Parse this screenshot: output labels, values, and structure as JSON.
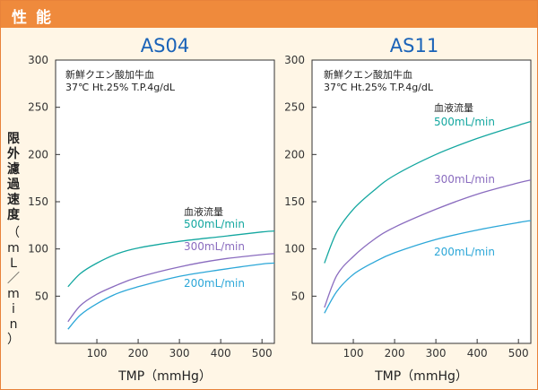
{
  "header": {
    "title": "性能"
  },
  "y_axis_label": {
    "text": "限外濾過速度",
    "unit": "（mL／min）"
  },
  "colors": {
    "header_bg": "#ef8a3c",
    "panel_bg": "#fff6e6",
    "title": "#1a63b8",
    "series_500": "#14a7a0",
    "series_300": "#8a6cbf",
    "series_200": "#2ca7d8"
  },
  "chart_data": [
    {
      "type": "line",
      "title": "AS04",
      "xlabel": "TMP（mmHg）",
      "ylabel": "限外濾過速度（mL／min）",
      "xlim": [
        0,
        530
      ],
      "ylim": [
        0,
        300
      ],
      "xticks": [
        100,
        200,
        300,
        400,
        500
      ],
      "yticks": [
        50,
        100,
        150,
        200,
        250,
        300
      ],
      "grid": false,
      "annotation_lines": [
        "新鮮クエン酸加牛血",
        "37℃ Ht.25% T.P.4g/dL"
      ],
      "legend_title": "血液流量",
      "series": [
        {
          "name": "500mL/min",
          "x": [
            30,
            60,
            100,
            150,
            200,
            300,
            400,
            500,
            530
          ],
          "y": [
            60,
            74,
            85,
            95,
            101,
            108,
            113,
            118,
            119
          ]
        },
        {
          "name": "300mL/min",
          "x": [
            30,
            60,
            100,
            150,
            200,
            300,
            400,
            500,
            530
          ],
          "y": [
            23,
            40,
            52,
            62,
            70,
            81,
            89,
            94,
            95
          ]
        },
        {
          "name": "200mL/min",
          "x": [
            30,
            60,
            100,
            150,
            200,
            300,
            400,
            500,
            530
          ],
          "y": [
            15,
            30,
            42,
            53,
            60,
            71,
            78,
            84,
            85
          ]
        }
      ]
    },
    {
      "type": "line",
      "title": "AS11",
      "xlabel": "TMP（mmHg）",
      "ylabel": "限外濾過速度（mL／min）",
      "xlim": [
        0,
        530
      ],
      "ylim": [
        0,
        300
      ],
      "xticks": [
        100,
        200,
        300,
        400,
        500
      ],
      "yticks": [
        50,
        100,
        150,
        200,
        250,
        300
      ],
      "grid": false,
      "annotation_lines": [
        "新鮮クエン酸加牛血",
        "37℃ Ht.25% T.P.4g/dL"
      ],
      "legend_title": "血液流量",
      "series": [
        {
          "name": "500mL/min",
          "x": [
            30,
            60,
            100,
            150,
            200,
            300,
            400,
            500,
            530
          ],
          "y": [
            85,
            118,
            142,
            162,
            178,
            200,
            217,
            231,
            235
          ]
        },
        {
          "name": "300mL/min",
          "x": [
            30,
            60,
            100,
            150,
            200,
            300,
            400,
            500,
            530
          ],
          "y": [
            38,
            72,
            92,
            110,
            123,
            142,
            158,
            170,
            173
          ]
        },
        {
          "name": "200mL/min",
          "x": [
            30,
            60,
            100,
            150,
            200,
            300,
            400,
            500,
            530
          ],
          "y": [
            32,
            55,
            73,
            86,
            96,
            110,
            120,
            128,
            130
          ]
        }
      ]
    }
  ]
}
